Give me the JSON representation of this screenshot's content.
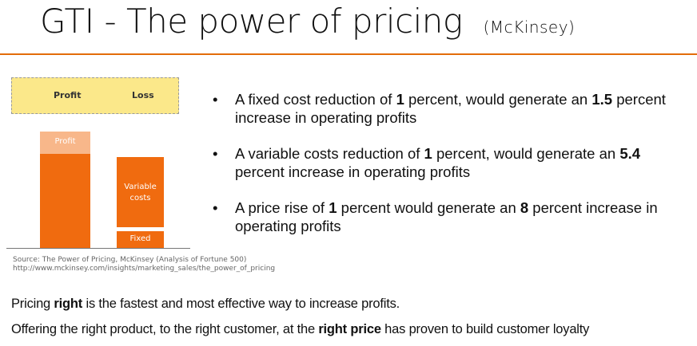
{
  "title": {
    "main": "GTI  - The power of pricing",
    "sub": "(McKinsey)"
  },
  "graphic": {
    "legend": {
      "profit": "Profit",
      "loss": "Loss"
    },
    "bars": {
      "profit_top": "Profit",
      "variable_line1": "Variable",
      "variable_line2": "costs",
      "fixed": "Fixed"
    }
  },
  "source": {
    "line1": "Source: The Power of Pricing, McKinsey (Analysis of Fortune 500)",
    "line2": "http://www.mckinsey.com/insights/marketing_sales/the_power_of_pricing"
  },
  "bullets": {
    "marker": "•",
    "b1": {
      "t1": "A fixed cost reduction of ",
      "n1": "1",
      "t2": " percent, would generate an ",
      "n2": "1.5",
      "t3": " percent increase in operating profits"
    },
    "b2": {
      "t1": "A variable costs reduction of ",
      "n1": "1",
      "t2": " percent, would generate an ",
      "n2": "5.4",
      "t3": " percent increase in operating profits"
    },
    "b3": {
      "t1": "A price rise of ",
      "n1": "1",
      "t2": " percent would generate an ",
      "n2": "8",
      "t3": " percent increase in operating profits"
    }
  },
  "bottom": {
    "line1": {
      "t1": "Pricing ",
      "bold": "right",
      "t2": " is the fastest and most effective way to increase profits."
    },
    "line2": {
      "t1": "Offering the right product, to the right customer, at the ",
      "bold": "right price",
      "t2": " has proven to build customer loyalty"
    }
  }
}
